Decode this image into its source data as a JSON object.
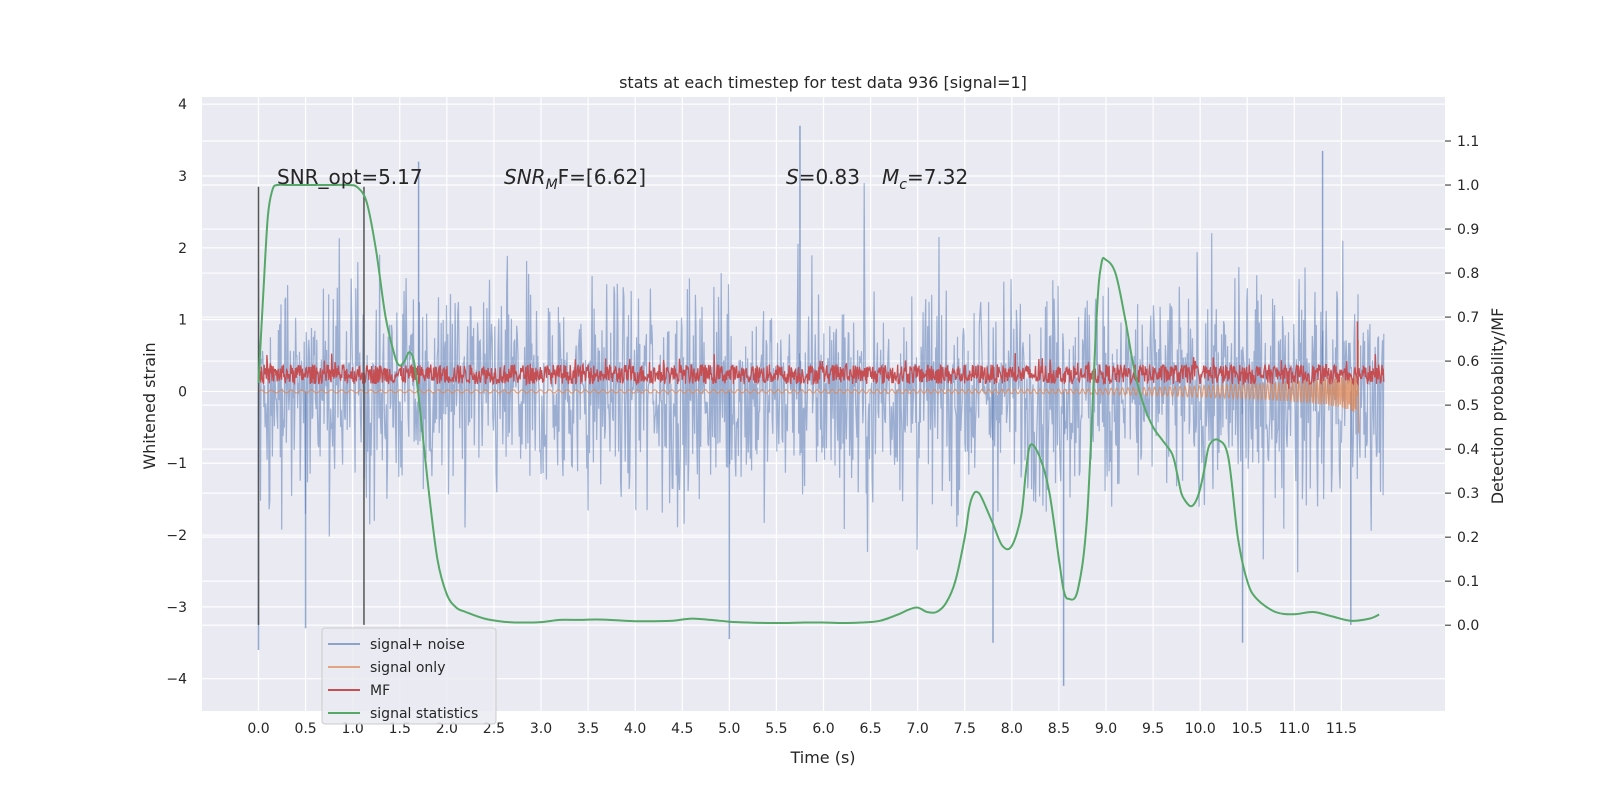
{
  "chart_data": {
    "type": "line",
    "title": "stats at each timestep for test data 936 [signal=1]",
    "xlabel": "Time (s)",
    "ylabel": "Whitened strain",
    "y2label": "Detection probability/MF",
    "xlim": [
      -0.6,
      12.6
    ],
    "ylim": [
      -4.45,
      4.1
    ],
    "y2lim": [
      -0.195,
      1.2
    ],
    "xticks": [
      "0.0",
      "0.5",
      "1.0",
      "1.5",
      "2.0",
      "2.5",
      "3.0",
      "3.5",
      "4.0",
      "4.5",
      "5.0",
      "5.5",
      "6.0",
      "6.5",
      "7.0",
      "7.5",
      "8.0",
      "8.5",
      "9.0",
      "9.5",
      "10.0",
      "10.5",
      "11.0",
      "11.5"
    ],
    "yticks": [
      "4",
      "3",
      "2",
      "1",
      "0",
      "−1",
      "−2",
      "−3",
      "−4"
    ],
    "y2ticks": [
      "1.1",
      "1.0",
      "0.9",
      "0.8",
      "0.7",
      "0.6",
      "0.5",
      "0.4",
      "0.3",
      "0.2",
      "0.1",
      "0.0"
    ],
    "grid": true,
    "legend_position": "lower-left",
    "annotations": {
      "snr_opt": "SNR_opt=5.17",
      "snr_mf_prefix": "SNR",
      "snr_mf_sub": "M",
      "snr_mf_suffix": "F=[6.62]",
      "s_sym": "S",
      "s_val": "=0.83",
      "mc_sym": "M",
      "mc_sub": "c",
      "mc_val": "=7.32"
    },
    "vlines_x": [
      0.0,
      1.12
    ],
    "series": [
      {
        "name": "signal+ noise",
        "color": "#4c72b0",
        "axis": "left",
        "x_range": [
          0.0,
          11.95
        ],
        "envelope_typical": 1.7,
        "extremes": [
          [
            0.0,
            -3.6
          ],
          [
            0.5,
            -3.3
          ],
          [
            1.7,
            3.2
          ],
          [
            5.0,
            -3.45
          ],
          [
            5.75,
            3.7
          ],
          [
            7.8,
            -3.5
          ],
          [
            8.55,
            -4.1
          ],
          [
            10.45,
            -3.5
          ],
          [
            11.3,
            3.35
          ],
          [
            11.6,
            -3.25
          ]
        ]
      },
      {
        "name": "signal only",
        "color": "#dd8452",
        "axis": "left",
        "x_range": [
          0.0,
          11.68
        ],
        "end_extremes": [
          0.72,
          -0.58
        ]
      },
      {
        "name": "MF",
        "color": "#c44e52",
        "axis": "right",
        "x_range": [
          0.0,
          11.95
        ],
        "mean": 0.57,
        "spike": [
          11.67,
          0.69
        ]
      },
      {
        "name": "signal statistics",
        "color": "#55a868",
        "axis": "right",
        "x": [
          0.0,
          0.05,
          0.1,
          0.15,
          0.2,
          0.3,
          0.5,
          0.8,
          0.95,
          1.05,
          1.15,
          1.25,
          1.35,
          1.45,
          1.5,
          1.55,
          1.6,
          1.65,
          1.7,
          1.8,
          1.9,
          2.0,
          2.1,
          2.2,
          2.4,
          2.6,
          2.8,
          3.0,
          3.2,
          3.4,
          3.6,
          3.8,
          4.0,
          4.2,
          4.4,
          4.6,
          4.8,
          5.0,
          5.2,
          5.4,
          5.6,
          5.8,
          6.0,
          6.2,
          6.4,
          6.6,
          6.8,
          6.9,
          7.0,
          7.1,
          7.2,
          7.3,
          7.4,
          7.5,
          7.55,
          7.6,
          7.65,
          7.7,
          7.8,
          7.9,
          8.0,
          8.1,
          8.15,
          8.2,
          8.3,
          8.4,
          8.5,
          8.55,
          8.6,
          8.7,
          8.8,
          8.9,
          8.95,
          9.0,
          9.1,
          9.2,
          9.3,
          9.4,
          9.5,
          9.6,
          9.7,
          9.75,
          9.8,
          9.85,
          9.9,
          9.95,
          10.0,
          10.05,
          10.1,
          10.2,
          10.3,
          10.4,
          10.5,
          10.6,
          10.8,
          11.0,
          11.2,
          11.4,
          11.6,
          11.8,
          11.9
        ],
        "y": [
          0.55,
          0.75,
          0.93,
          0.99,
          1.0,
          1.0,
          1.0,
          1.0,
          1.0,
          0.995,
          0.96,
          0.85,
          0.7,
          0.61,
          0.59,
          0.6,
          0.62,
          0.6,
          0.52,
          0.32,
          0.15,
          0.07,
          0.04,
          0.03,
          0.015,
          0.008,
          0.006,
          0.007,
          0.012,
          0.012,
          0.013,
          0.011,
          0.009,
          0.009,
          0.01,
          0.015,
          0.012,
          0.008,
          0.006,
          0.005,
          0.005,
          0.006,
          0.006,
          0.005,
          0.006,
          0.01,
          0.025,
          0.035,
          0.04,
          0.03,
          0.03,
          0.05,
          0.1,
          0.2,
          0.27,
          0.3,
          0.3,
          0.28,
          0.23,
          0.18,
          0.18,
          0.25,
          0.35,
          0.41,
          0.38,
          0.3,
          0.15,
          0.08,
          0.06,
          0.08,
          0.25,
          0.7,
          0.82,
          0.83,
          0.8,
          0.7,
          0.58,
          0.5,
          0.45,
          0.42,
          0.39,
          0.35,
          0.3,
          0.28,
          0.27,
          0.28,
          0.31,
          0.36,
          0.41,
          0.42,
          0.38,
          0.2,
          0.1,
          0.06,
          0.03,
          0.025,
          0.03,
          0.02,
          0.01,
          0.015,
          0.024
        ]
      }
    ]
  }
}
